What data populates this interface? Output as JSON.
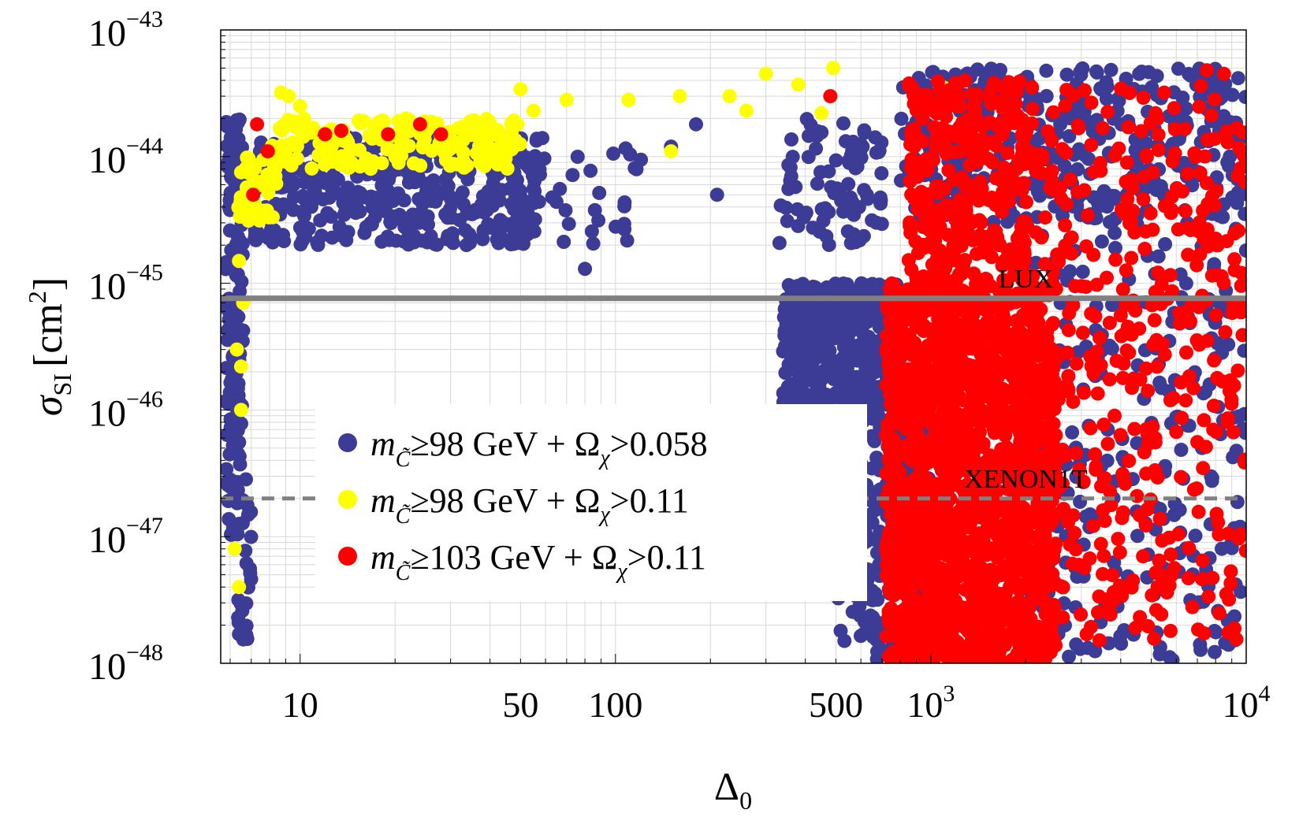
{
  "chart_data": {
    "type": "scatter",
    "title": "",
    "xlabel": "Δ",
    "xlabel_sub": "0",
    "ylabel": "σ",
    "ylabel_sub": "SI",
    "ylabel_unit": "[cm",
    "ylabel_unit_sup": "2",
    "ylabel_unit_close": "]",
    "xscale": "log",
    "yscale": "log",
    "xlim": [
      5.6,
      10000
    ],
    "ylim": [
      1e-48,
      1e-43
    ],
    "grid": true,
    "x_ticks": [
      {
        "value": 10,
        "label": "10",
        "sup": ""
      },
      {
        "value": 50,
        "label": "50",
        "sup": ""
      },
      {
        "value": 100,
        "label": "100",
        "sup": ""
      },
      {
        "value": 500,
        "label": "500",
        "sup": ""
      },
      {
        "value": 1000,
        "label": "10",
        "sup": "3"
      },
      {
        "value": 10000,
        "label": "10",
        "sup": "4"
      }
    ],
    "y_ticks": [
      {
        "value": 1e-43,
        "label": "10",
        "sup": "−43"
      },
      {
        "value": 1e-44,
        "label": "10",
        "sup": "−44"
      },
      {
        "value": 1e-45,
        "label": "10",
        "sup": "−45"
      },
      {
        "value": 1e-46,
        "label": "10",
        "sup": "−46"
      },
      {
        "value": 1e-47,
        "label": "10",
        "sup": "−47"
      },
      {
        "value": 1e-48,
        "label": "10",
        "sup": "−48"
      }
    ],
    "reference_lines": [
      {
        "name": "LUX",
        "label": "LUX",
        "y": 7.6e-46,
        "style": "solid",
        "color": "#808080",
        "label_x": 2000
      },
      {
        "name": "XENON1T",
        "label": "XENON1T",
        "y": 2e-47,
        "style": "dashed",
        "color": "#808080",
        "label_x": 2000
      }
    ],
    "legend_position": "lower-left",
    "series": [
      {
        "name": "blue",
        "color": "#3c3c96",
        "label_m": "m",
        "label_sub": "C̃",
        "label_mid": "≥98 GeV + Ω",
        "label_sub2": "χ",
        "label_end": ">0.058",
        "clusters": [
          {
            "x": [
              5.8,
              6.6
            ],
            "y": [
              1e-47,
              2e-44
            ],
            "n": 160
          },
          {
            "x": [
              6.3,
              7.0
            ],
            "y": [
              1.3e-48,
              3e-47
            ],
            "n": 25
          },
          {
            "x": [
              7.0,
              60
            ],
            "y": [
              2e-45,
              1.5e-44
            ],
            "n": 420
          },
          {
            "x": [
              40,
              130
            ],
            "y": [
              2e-45,
              1.2e-44
            ],
            "n": 45
          },
          {
            "x": [
              330,
              700
            ],
            "y": [
              2e-45,
              2e-44
            ],
            "n": 90
          },
          {
            "x": [
              340,
              800
            ],
            "y": [
              1e-46,
              1e-45
            ],
            "n": 500
          },
          {
            "x": [
              500,
              800
            ],
            "y": [
              1e-48,
              1e-46
            ],
            "n": 170
          },
          {
            "x": [
              750,
              1000
            ],
            "y": [
              1e-48,
              1e-46
            ],
            "n": 120
          },
          {
            "x": [
              800,
              10000
            ],
            "y": [
              3e-45,
              5e-44
            ],
            "n": 420
          },
          {
            "x": [
              2000,
              10000
            ],
            "y": [
              1e-48,
              3e-45
            ],
            "n": 260
          }
        ],
        "points": [
          [
            80,
            1.3e-45
          ],
          [
            180,
            1.8e-44
          ],
          [
            210,
            5e-45
          ],
          [
            150,
            1.2e-44
          ],
          [
            11,
            1.5e-44
          ]
        ]
      },
      {
        "name": "yellow",
        "color": "#ffff00",
        "label_m": "m",
        "label_sub": "C̃",
        "label_mid": "≥98 GeV + Ω",
        "label_sub2": "χ",
        "label_end": ">0.11",
        "clusters": [
          {
            "x": [
              6.3,
              8.5
            ],
            "y": [
              3e-45,
              1e-44
            ],
            "n": 40
          },
          {
            "x": [
              8,
              50
            ],
            "y": [
              8e-45,
              2e-44
            ],
            "n": 190
          }
        ],
        "points": [
          [
            6.4,
            1.5e-45
          ],
          [
            6.6,
            7e-46
          ],
          [
            6.3,
            3e-46
          ],
          [
            6.5,
            1e-46
          ],
          [
            6.2,
            8e-48
          ],
          [
            6.4,
            4e-48
          ],
          [
            6.5,
            2.2e-46
          ],
          [
            8.7,
            3.2e-44
          ],
          [
            9.2,
            3e-44
          ],
          [
            10,
            2.5e-44
          ],
          [
            50,
            3.4e-44
          ],
          [
            55,
            2.3e-44
          ],
          [
            70,
            2.8e-44
          ],
          [
            110,
            2.8e-44
          ],
          [
            160,
            3e-44
          ],
          [
            230,
            3e-44
          ],
          [
            260,
            2.3e-44
          ],
          [
            300,
            4.5e-44
          ],
          [
            380,
            3.7e-44
          ],
          [
            490,
            5e-44
          ],
          [
            150,
            1.1e-44
          ],
          [
            1100,
            3.5e-44
          ],
          [
            450,
            2.2e-44
          ]
        ]
      },
      {
        "name": "red",
        "color": "#ff0000",
        "label_m": "m",
        "label_sub": "C̃",
        "label_mid": "≥103 GeV + Ω",
        "label_sub2": "χ",
        "label_end": ">0.11",
        "clusters": [
          {
            "x": [
              720,
              2500
            ],
            "y": [
              1e-48,
              1e-45
            ],
            "n": 1700
          },
          {
            "x": [
              850,
              2000
            ],
            "y": [
              1e-45,
              4e-44
            ],
            "n": 320
          },
          {
            "x": [
              1900,
              10000
            ],
            "y": [
              1.5e-48,
              4e-44
            ],
            "n": 460
          }
        ],
        "points": [
          [
            7.3,
            1.8e-44
          ],
          [
            7.9,
            1.1e-44
          ],
          [
            7.1,
            5e-45
          ],
          [
            12,
            1.5e-44
          ],
          [
            13.5,
            1.6e-44
          ],
          [
            19,
            1.5e-44
          ],
          [
            24,
            1.8e-44
          ],
          [
            28,
            1.5e-44
          ],
          [
            480,
            3e-44
          ],
          [
            8500,
            4.5e-44
          ],
          [
            7500,
            4.8e-44
          ]
        ]
      }
    ]
  }
}
